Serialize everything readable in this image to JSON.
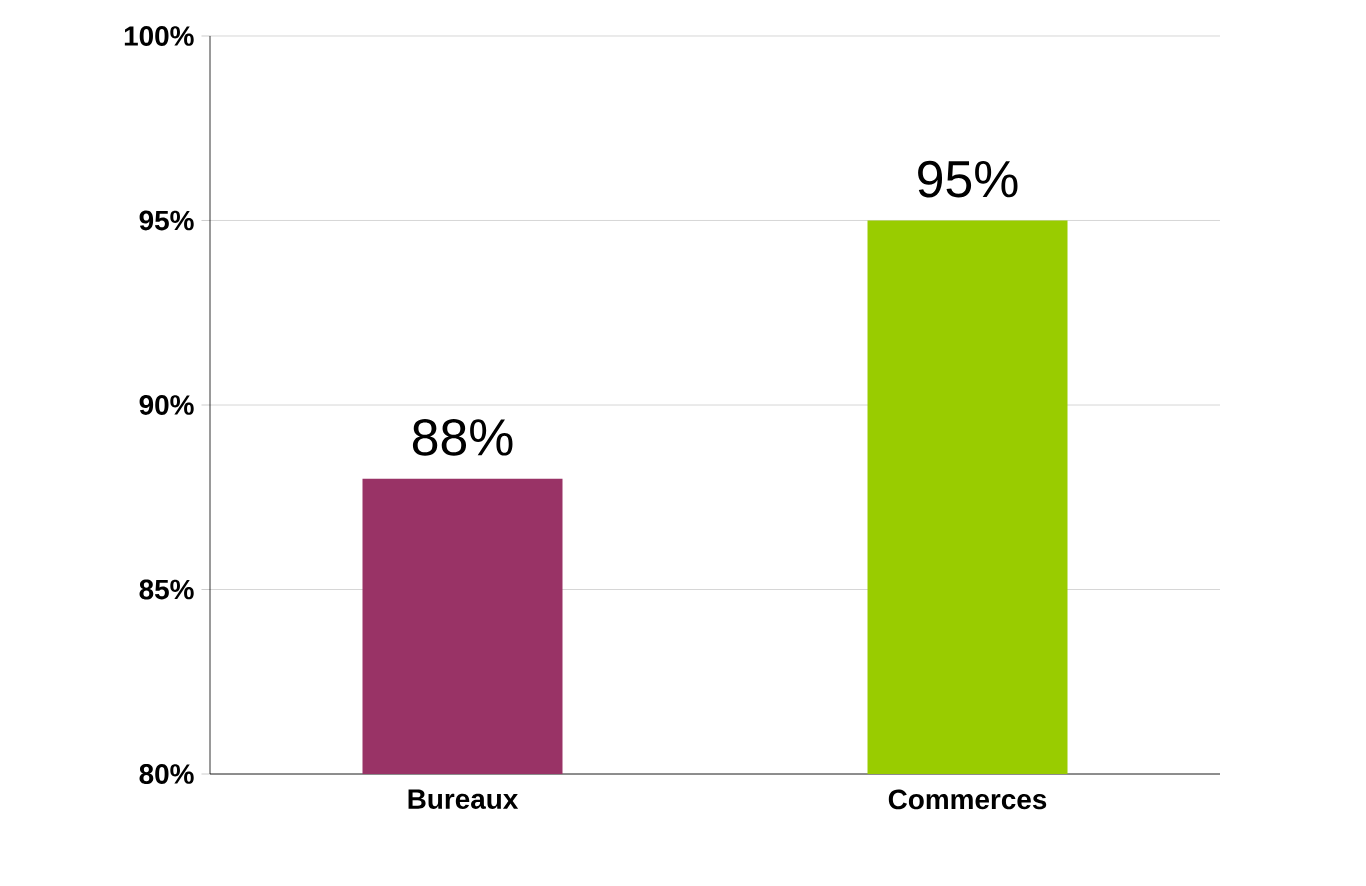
{
  "chart_data": {
    "type": "bar",
    "categories": [
      "Bureaux",
      "Commerces"
    ],
    "values": [
      88,
      95
    ],
    "colors": [
      "#993366",
      "#99cc00"
    ],
    "value_labels": [
      "88%",
      "95%"
    ],
    "ylim": [
      80,
      100
    ],
    "yticks": [
      {
        "value": 80,
        "label": "80%"
      },
      {
        "value": 85,
        "label": "85%"
      },
      {
        "value": 90,
        "label": "90%"
      },
      {
        "value": 95,
        "label": "95%"
      },
      {
        "value": 100,
        "label": "100%"
      }
    ],
    "grid": "y"
  }
}
